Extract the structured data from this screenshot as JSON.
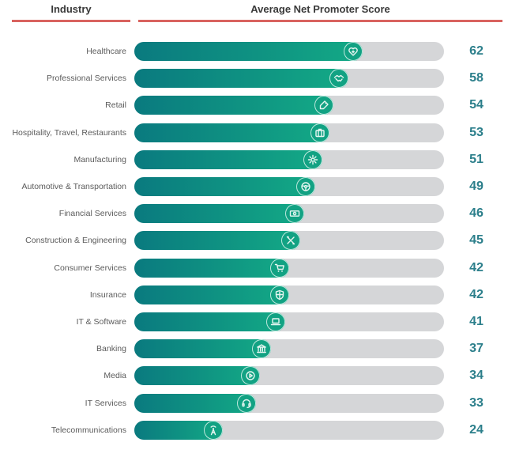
{
  "header": {
    "industry_label": "Industry",
    "score_label": "Average Net Promoter Score"
  },
  "colors": {
    "header_rule": "#d9635f",
    "bar_fill_start": "#0a7a7f",
    "bar_fill_end": "#13aa86",
    "track": "#d5d6d8",
    "value_text": "#2c7f8b"
  },
  "chart_data": {
    "type": "bar",
    "orientation": "horizontal",
    "title": "Average Net Promoter Score",
    "xlabel": "Average Net Promoter Score",
    "ylabel": "Industry",
    "xlim": [
      0,
      84
    ],
    "grid": false,
    "categories": [
      "Healthcare",
      "Professional Services",
      "Retail",
      "Hospitality, Travel, Restaurants",
      "Manufacturing",
      "Automotive & Transportation",
      "Financial Services",
      "Construction & Engineering",
      "Consumer Services",
      "Insurance",
      "IT & Software",
      "Banking",
      "Media",
      "IT Services",
      "Telecommunications"
    ],
    "values": [
      62,
      58,
      54,
      53,
      51,
      49,
      46,
      45,
      42,
      42,
      41,
      37,
      34,
      33,
      24
    ],
    "icons": [
      "heart-icon",
      "handshake-icon",
      "price-tag-icon",
      "luggage-icon",
      "gear-icon",
      "steering-wheel-icon",
      "banknote-icon",
      "tools-icon",
      "shopping-cart-icon",
      "shield-icon",
      "laptop-icon",
      "bank-building-icon",
      "play-button-icon",
      "headset-icon",
      "antenna-tower-icon"
    ],
    "data_labels": [
      "62",
      "58",
      "54",
      "53",
      "51",
      "49",
      "46",
      "45",
      "42",
      "42",
      "41",
      "37",
      "34",
      "33",
      "24"
    ]
  }
}
